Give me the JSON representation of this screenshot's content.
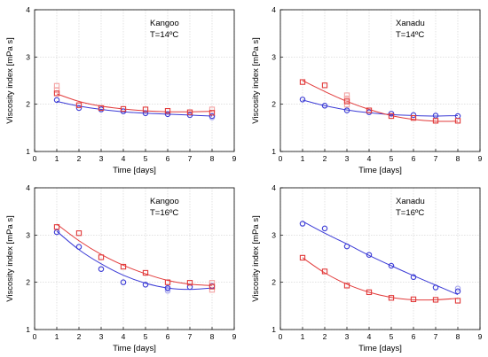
{
  "colors": {
    "blue": "#3b3bd6",
    "red": "#e23b3b",
    "light_blue": "#a9a9ee",
    "light_red": "#f3a3a3"
  },
  "chart_data": [
    {
      "type": "scatter",
      "title": "",
      "annotation": [
        "Kangoo",
        "T=14ºC"
      ],
      "xlabel": "Time [days]",
      "ylabel": "Viscosity index [mPa s]",
      "xlim": [
        0,
        9
      ],
      "ylim": [
        1,
        4
      ],
      "xticks": [
        0,
        1,
        2,
        3,
        4,
        5,
        6,
        7,
        8,
        9
      ],
      "yticks": [
        1,
        2,
        3,
        4
      ],
      "grid": true,
      "series": [
        {
          "color": "blue",
          "marker": "circle",
          "x": [
            1,
            2,
            3,
            4,
            5,
            6,
            7,
            8
          ],
          "y": [
            2.09,
            1.92,
            1.89,
            1.85,
            1.81,
            1.79,
            1.77,
            1.75
          ],
          "fit": [
            2.06,
            1.96,
            1.89,
            1.84,
            1.81,
            1.79,
            1.77,
            1.75
          ]
        },
        {
          "color": "red",
          "marker": "square",
          "x": [
            1,
            2,
            3,
            4,
            5,
            6,
            7,
            8
          ],
          "y": [
            2.23,
            1.98,
            1.92,
            1.9,
            1.89,
            1.86,
            1.83,
            1.82
          ],
          "fit": [
            2.22,
            2.06,
            1.96,
            1.9,
            1.86,
            1.84,
            1.84,
            1.85
          ]
        }
      ],
      "faint_points": [
        {
          "color": "light_red",
          "marker": "square",
          "x": [
            1,
            1,
            8
          ],
          "y": [
            2.39,
            2.3,
            1.89
          ]
        },
        {
          "color": "light_blue",
          "marker": "circle",
          "x": [
            8
          ],
          "y": [
            1.72
          ]
        }
      ]
    },
    {
      "type": "scatter",
      "title": "",
      "annotation": [
        "Xanadu",
        "T=14ºC"
      ],
      "xlabel": "Time [days]",
      "ylabel": "Viscosity index [mPa s]",
      "xlim": [
        0,
        9
      ],
      "ylim": [
        1,
        4
      ],
      "xticks": [
        0,
        1,
        2,
        3,
        4,
        5,
        6,
        7,
        8,
        9
      ],
      "yticks": [
        1,
        2,
        3,
        4
      ],
      "grid": true,
      "series": [
        {
          "color": "blue",
          "marker": "circle",
          "x": [
            1,
            2,
            3,
            4,
            5,
            6,
            7,
            8
          ],
          "y": [
            2.1,
            1.97,
            1.87,
            1.83,
            1.8,
            1.77,
            1.76,
            1.75
          ],
          "fit": [
            2.09,
            1.97,
            1.88,
            1.82,
            1.78,
            1.76,
            1.75,
            1.76
          ]
        },
        {
          "color": "red",
          "marker": "square",
          "x": [
            1,
            2,
            3,
            4,
            5,
            6,
            7,
            8
          ],
          "y": [
            2.47,
            2.4,
            2.06,
            1.87,
            1.75,
            1.71,
            1.65,
            1.65
          ],
          "fit": [
            2.5,
            2.27,
            2.06,
            1.89,
            1.76,
            1.68,
            1.64,
            1.64
          ]
        }
      ],
      "faint_points": [
        {
          "color": "light_red",
          "marker": "square",
          "x": [
            3,
            3,
            3
          ],
          "y": [
            2.19,
            2.12,
            1.99
          ]
        }
      ]
    },
    {
      "type": "scatter",
      "title": "",
      "annotation": [
        "Kangoo",
        "T=16ºC"
      ],
      "xlabel": "Time [days]",
      "ylabel": "Viscosity index [mPa s]",
      "xlim": [
        0,
        9
      ],
      "ylim": [
        1,
        4
      ],
      "xticks": [
        0,
        1,
        2,
        3,
        4,
        5,
        6,
        7,
        8,
        9
      ],
      "yticks": [
        1,
        2,
        3,
        4
      ],
      "grid": true,
      "series": [
        {
          "color": "blue",
          "marker": "circle",
          "x": [
            1,
            2,
            3,
            4,
            5,
            6,
            7,
            8
          ],
          "y": [
            3.06,
            2.75,
            2.28,
            2.0,
            1.95,
            1.88,
            1.9,
            1.92
          ],
          "fit": [
            3.08,
            2.69,
            2.39,
            2.15,
            1.98,
            1.88,
            1.85,
            1.88
          ]
        },
        {
          "color": "red",
          "marker": "square",
          "x": [
            1,
            2,
            3,
            4,
            5,
            6,
            7,
            8
          ],
          "y": [
            3.17,
            3.04,
            2.53,
            2.33,
            2.2,
            2.0,
            1.99,
            1.91
          ],
          "fit": [
            3.23,
            2.88,
            2.59,
            2.36,
            2.18,
            2.04,
            1.96,
            1.93
          ]
        }
      ],
      "faint_points": [
        {
          "color": "light_blue",
          "marker": "circle",
          "x": [
            6,
            6
          ],
          "y": [
            1.82,
            1.86
          ]
        },
        {
          "color": "light_red",
          "marker": "square",
          "x": [
            8,
            8
          ],
          "y": [
            1.99,
            1.84
          ]
        }
      ]
    },
    {
      "type": "scatter",
      "title": "",
      "annotation": [
        "Xanadu",
        "T=16ºC"
      ],
      "xlabel": "Time [days]",
      "ylabel": "Viscosity index [mPa s]",
      "xlim": [
        0,
        9
      ],
      "ylim": [
        1,
        4
      ],
      "xticks": [
        0,
        1,
        2,
        3,
        4,
        5,
        6,
        7,
        8,
        9
      ],
      "yticks": [
        1,
        2,
        3,
        4
      ],
      "grid": true,
      "series": [
        {
          "color": "blue",
          "marker": "circle",
          "x": [
            1,
            2,
            3,
            4,
            5,
            6,
            7,
            8
          ],
          "y": [
            3.24,
            3.14,
            2.76,
            2.58,
            2.35,
            2.11,
            1.89,
            1.81
          ],
          "fit": [
            3.29,
            3.04,
            2.81,
            2.57,
            2.35,
            2.14,
            1.94,
            1.74
          ]
        },
        {
          "color": "red",
          "marker": "square",
          "x": [
            1,
            2,
            3,
            4,
            5,
            6,
            7,
            8
          ],
          "y": [
            2.52,
            2.23,
            1.93,
            1.79,
            1.67,
            1.64,
            1.63,
            1.61
          ],
          "fit": [
            2.52,
            2.2,
            1.96,
            1.79,
            1.68,
            1.63,
            1.63,
            1.66
          ]
        }
      ],
      "faint_points": [
        {
          "color": "light_blue",
          "marker": "circle",
          "x": [
            8
          ],
          "y": [
            1.87
          ]
        }
      ]
    }
  ]
}
